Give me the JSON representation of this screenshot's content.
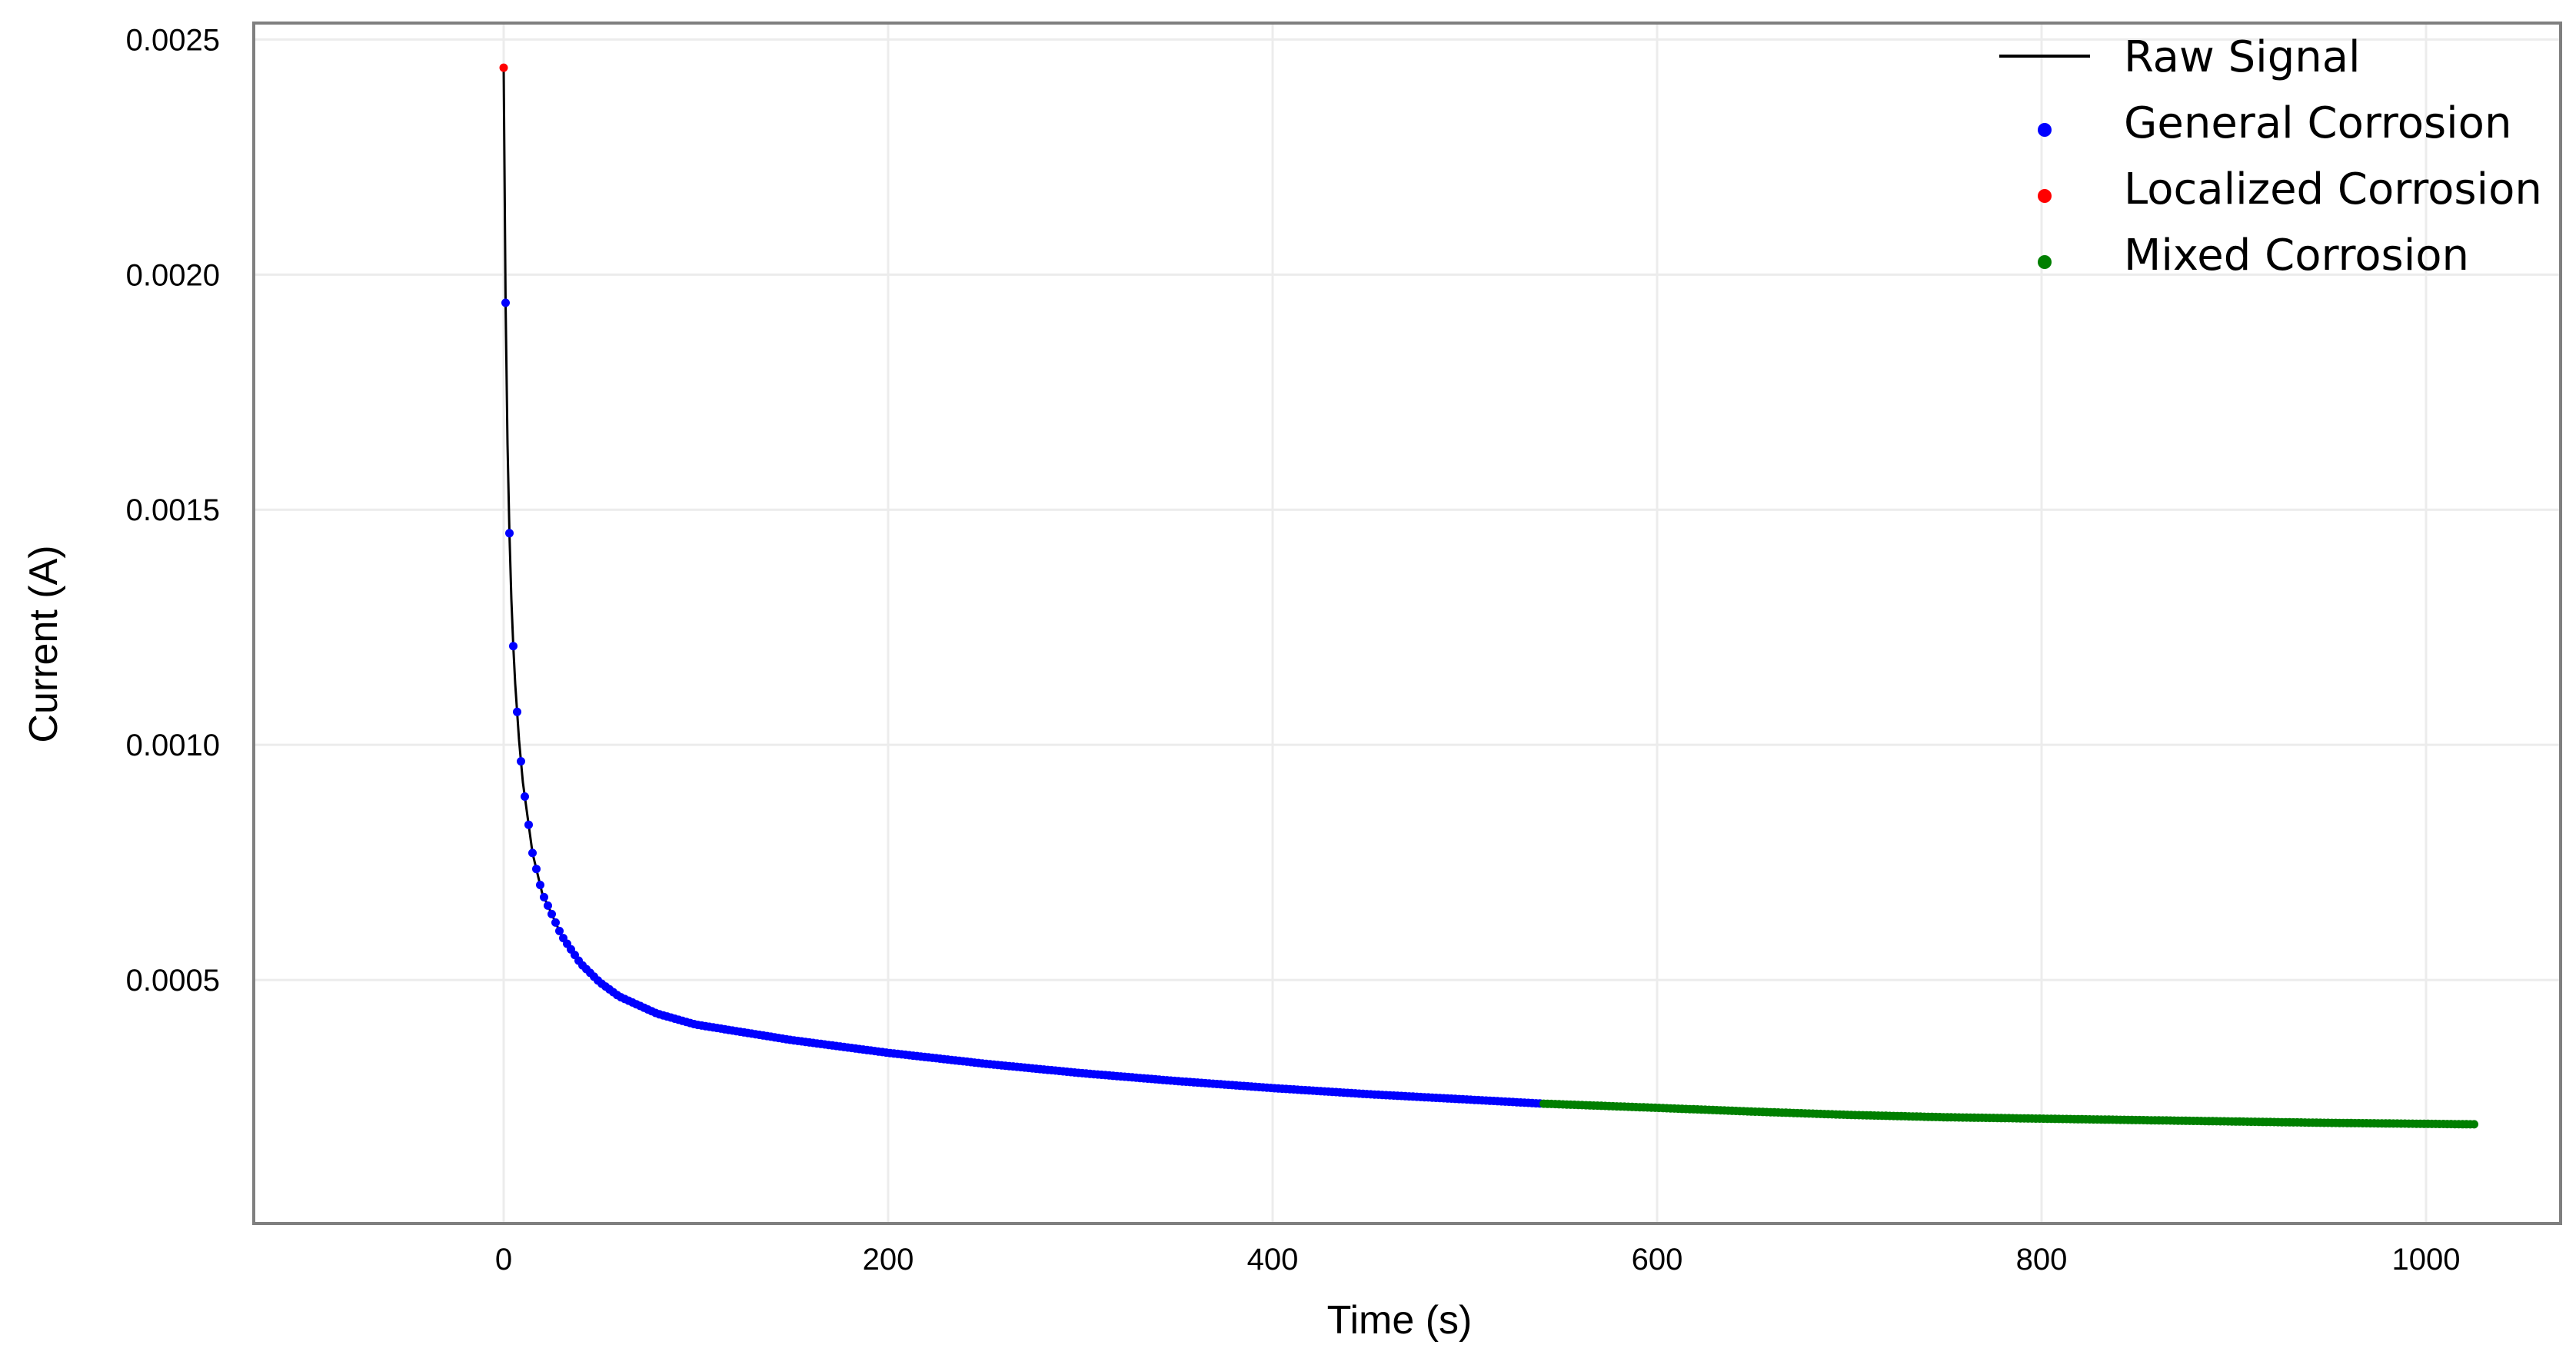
{
  "chart_data": {
    "type": "line",
    "xlabel": "Time (s)",
    "ylabel": "Current (A)",
    "xlim": [
      -130,
      1070
    ],
    "ylim": [
      -1.8e-05,
      0.002535
    ],
    "grid": true,
    "legend_placement": "top-right",
    "xticks": [
      {
        "value": 0,
        "label": "0"
      },
      {
        "value": 200,
        "label": "200"
      },
      {
        "value": 400,
        "label": "400"
      },
      {
        "value": 600,
        "label": "600"
      },
      {
        "value": 800,
        "label": "800"
      },
      {
        "value": 1000,
        "label": "1000"
      }
    ],
    "yticks": [
      {
        "value": 0.0005,
        "label": "0.0005"
      },
      {
        "value": 0.001,
        "label": "0.0010"
      },
      {
        "value": 0.0015,
        "label": "0.0015"
      },
      {
        "value": 0.002,
        "label": "0.0020"
      },
      {
        "value": 0.0025,
        "label": "0.0025"
      }
    ],
    "curve_model": {
      "description": "decaying current transient",
      "x": [
        0,
        1,
        2,
        3,
        4,
        5,
        6,
        8,
        10,
        15,
        20,
        30,
        40,
        50,
        60,
        80,
        100,
        150,
        200,
        250,
        300,
        350,
        400,
        450,
        500,
        540,
        600,
        650,
        700,
        750,
        800,
        850,
        900,
        950,
        1000,
        1025
      ],
      "y": [
        0.00244,
        0.00194,
        0.00164,
        0.00145,
        0.00131,
        0.00121,
        0.00113,
        0.00101,
        0.00092,
        0.00077,
        0.000685,
        0.000595,
        0.000535,
        0.000495,
        0.000465,
        0.000428,
        0.000405,
        0.000372,
        0.000345,
        0.000322,
        0.000302,
        0.000285,
        0.00027,
        0.000257,
        0.000246,
        0.000237,
        0.000228,
        0.00022,
        0.000213,
        0.000208,
        0.000205,
        0.000202,
        0.000199,
        0.000196,
        0.000194,
        0.000193
      ]
    },
    "series": [
      {
        "name": "Raw Signal",
        "kind": "line",
        "color": "#000000",
        "x_range": [
          0,
          1025
        ]
      },
      {
        "name": "General Corrosion",
        "kind": "scatter",
        "color": "#0000ff",
        "x_range": [
          1,
          540
        ],
        "step": 2
      },
      {
        "name": "Localized Corrosion",
        "kind": "scatter",
        "color": "#ff0000",
        "x_values": [
          0
        ]
      },
      {
        "name": "Mixed Corrosion",
        "kind": "scatter",
        "color": "#007f00",
        "x_range": [
          541,
          1025
        ],
        "step": 2
      }
    ]
  }
}
